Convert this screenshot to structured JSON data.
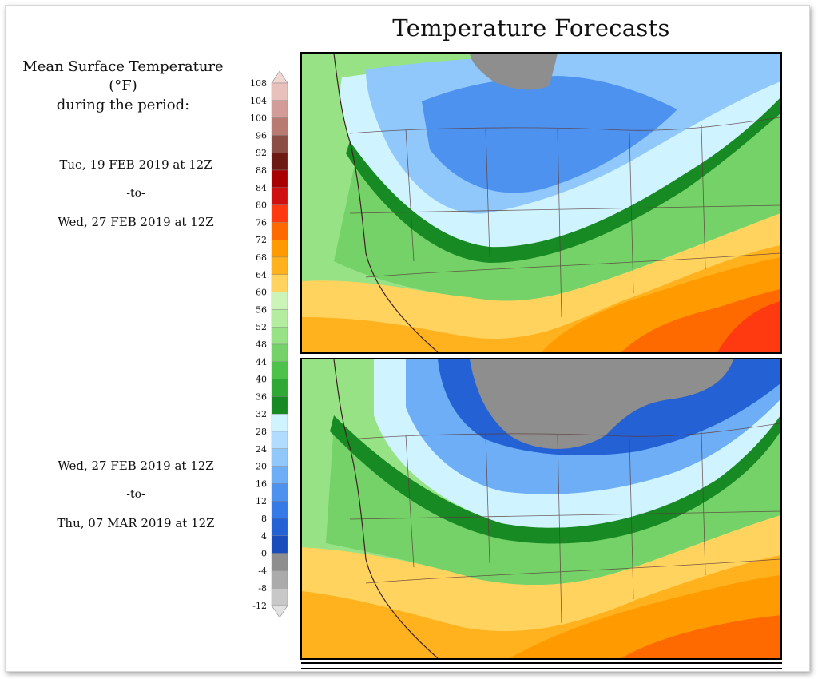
{
  "title": "Temperature Forecasts",
  "legend": {
    "title_line1": "Mean Surface Temperature (°F)",
    "title_line2": "during the period:",
    "ticks": [
      "108",
      "104",
      "100",
      "96",
      "92",
      "88",
      "84",
      "80",
      "76",
      "72",
      "68",
      "64",
      "60",
      "56",
      "52",
      "48",
      "44",
      "40",
      "36",
      "32",
      "28",
      "24",
      "20",
      "16",
      "12",
      "8",
      "4",
      "0",
      "-4",
      "-8",
      "-12"
    ],
    "bins": [
      {
        "from": 104,
        "to": 108,
        "color": "#e8c0bc"
      },
      {
        "from": 100,
        "to": 104,
        "color": "#d49c98"
      },
      {
        "from": 96,
        "to": 100,
        "color": "#b97a72"
      },
      {
        "from": 92,
        "to": 96,
        "color": "#8c4e44"
      },
      {
        "from": 88,
        "to": 92,
        "color": "#6e1a14"
      },
      {
        "from": 84,
        "to": 88,
        "color": "#a80000"
      },
      {
        "from": 80,
        "to": 84,
        "color": "#d01010"
      },
      {
        "from": 76,
        "to": 80,
        "color": "#ff3a10"
      },
      {
        "from": 72,
        "to": 76,
        "color": "#ff6a00"
      },
      {
        "from": 68,
        "to": 72,
        "color": "#ff9a00"
      },
      {
        "from": 64,
        "to": 68,
        "color": "#ffb21e"
      },
      {
        "from": 60,
        "to": 64,
        "color": "#ffd35e"
      },
      {
        "from": 56,
        "to": 60,
        "color": "#ccf4b8"
      },
      {
        "from": 52,
        "to": 56,
        "color": "#b4eca0"
      },
      {
        "from": 48,
        "to": 52,
        "color": "#98e286"
      },
      {
        "from": 44,
        "to": 48,
        "color": "#74d268"
      },
      {
        "from": 40,
        "to": 44,
        "color": "#4cc24a"
      },
      {
        "from": 36,
        "to": 40,
        "color": "#30a836"
      },
      {
        "from": 32,
        "to": 36,
        "color": "#188a24"
      },
      {
        "from": 28,
        "to": 32,
        "color": "#cff3ff"
      },
      {
        "from": 24,
        "to": 28,
        "color": "#b2dcff"
      },
      {
        "from": 20,
        "to": 24,
        "color": "#90c8fb"
      },
      {
        "from": 16,
        "to": 20,
        "color": "#6eaef6"
      },
      {
        "from": 12,
        "to": 16,
        "color": "#4e92ef"
      },
      {
        "from": 8,
        "to": 12,
        "color": "#357ae6"
      },
      {
        "from": 4,
        "to": 8,
        "color": "#2461d4"
      },
      {
        "from": 0,
        "to": 4,
        "color": "#1a4cbc"
      },
      {
        "from": -4,
        "to": 0,
        "color": "#8e8e8e"
      },
      {
        "from": -8,
        "to": -4,
        "color": "#ababab"
      },
      {
        "from": -12,
        "to": -8,
        "color": "#c8c8c8"
      }
    ],
    "cap_top_color": "#f2d6d2",
    "cap_bottom_color": "#e2e2e2"
  },
  "periods": [
    {
      "start": "Tue, 19 FEB 2019 at 12Z",
      "sep": "-to-",
      "end": "Wed, 27 FEB 2019 at 12Z"
    },
    {
      "start": "Wed, 27 FEB 2019 at 12Z",
      "sep": "-to-",
      "end": "Thu, 07 MAR 2019 at 12Z"
    }
  ]
}
